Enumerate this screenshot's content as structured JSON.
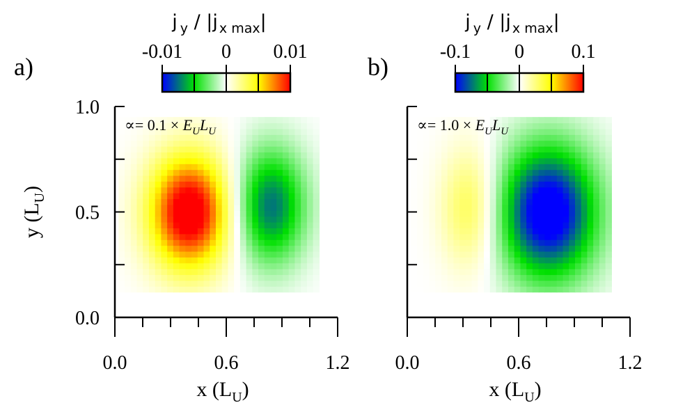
{
  "chart_data": [
    {
      "type": "heatmap",
      "panel_label": "a)",
      "annotation": {
        "prefix": "∝= ",
        "value": "0.1",
        "times": " × ",
        "E": "E",
        "L": "L",
        "sub": "U"
      },
      "xlabel": {
        "main": "x (L",
        "sub": "U",
        "close": ")"
      },
      "ylabel": {
        "main": "y (L",
        "sub": "U",
        "close": ")"
      },
      "xlim": [
        0.0,
        1.2
      ],
      "ylim": [
        0.0,
        1.0
      ],
      "xticks": [
        "0.0",
        "0.6",
        "1.2"
      ],
      "yticks": [
        "0.0",
        "0.5",
        "1.0"
      ],
      "colorbar": {
        "label": {
          "j": "j",
          "y": "y",
          "slash": " / |j",
          "sub": "x max",
          "bar": "|"
        },
        "ticks": [
          "-0.01",
          "0",
          "0.01"
        ],
        "range": [
          -0.01,
          0.01
        ],
        "colors": [
          "#0000ff",
          "#00e000",
          "#ffffff",
          "#ffff00",
          "#ff0000"
        ]
      },
      "cells": {
        "nx": 33,
        "ny": 30
      },
      "lobes": [
        {
          "cx": 0.4,
          "cy": 0.5,
          "sx": 0.15,
          "sy": 0.19,
          "amp": 1.15
        },
        {
          "cx": 0.84,
          "cy": 0.53,
          "sx": 0.13,
          "sy": 0.19,
          "amp": -0.75
        }
      ]
    },
    {
      "type": "heatmap",
      "panel_label": "b)",
      "annotation": {
        "prefix": "∝= ",
        "value": "1.0",
        "times": " × ",
        "E": "E",
        "L": "L",
        "sub": "U"
      },
      "xlabel": {
        "main": "x (L",
        "sub": "U",
        "close": ")"
      },
      "ylabel": {
        "main": "",
        "sub": "",
        "close": ""
      },
      "xlim": [
        0.0,
        1.2
      ],
      "ylim": [
        0.0,
        1.0
      ],
      "xticks": [
        "0.0",
        "0.6",
        "1.2"
      ],
      "yticks": [],
      "colorbar": {
        "label": {
          "j": "j",
          "y": "y",
          "slash": " / |j",
          "sub": "x max",
          "bar": "|"
        },
        "ticks": [
          "-0.1",
          "0",
          "0.1"
        ],
        "range": [
          -0.1,
          0.1
        ],
        "colors": [
          "#0000ff",
          "#00e000",
          "#ffffff",
          "#ffff00",
          "#ff0000"
        ]
      },
      "cells": {
        "nx": 33,
        "ny": 30
      },
      "lobes": [
        {
          "cx": 0.34,
          "cy": 0.52,
          "sx": 0.11,
          "sy": 0.2,
          "amp": 0.36
        },
        {
          "cx": 0.76,
          "cy": 0.5,
          "sx": 0.18,
          "sy": 0.22,
          "amp": -1.15
        }
      ]
    }
  ]
}
